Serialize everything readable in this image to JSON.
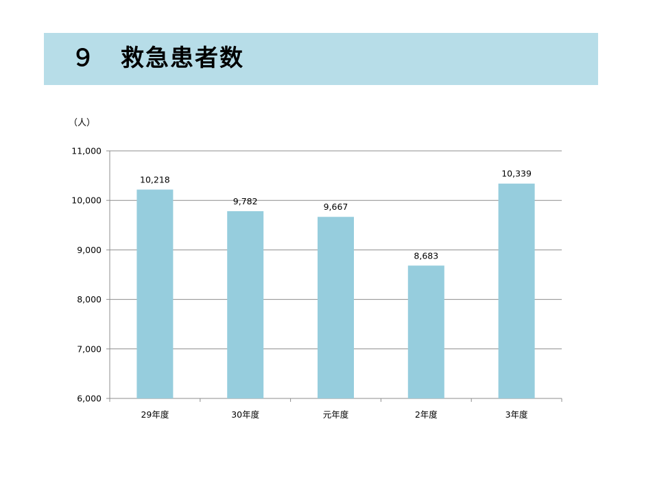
{
  "header": {
    "title": "９　救急患者数"
  },
  "chart_data": {
    "type": "bar",
    "unit_label": "（人）",
    "categories": [
      "29年度",
      "30年度",
      "元年度",
      "2年度",
      "3年度"
    ],
    "values": [
      10218,
      9782,
      9667,
      8683,
      10339
    ],
    "value_labels": [
      "10,218",
      "9,782",
      "9,667",
      "8,683",
      "10,339"
    ],
    "ylim": [
      6000,
      11000
    ],
    "yticks": [
      6000,
      7000,
      8000,
      9000,
      10000,
      11000
    ],
    "ytick_labels": [
      "6,000",
      "7,000",
      "8,000",
      "9,000",
      "10,000",
      "11,000"
    ],
    "grid": true,
    "bar_color": "#96cddd"
  }
}
